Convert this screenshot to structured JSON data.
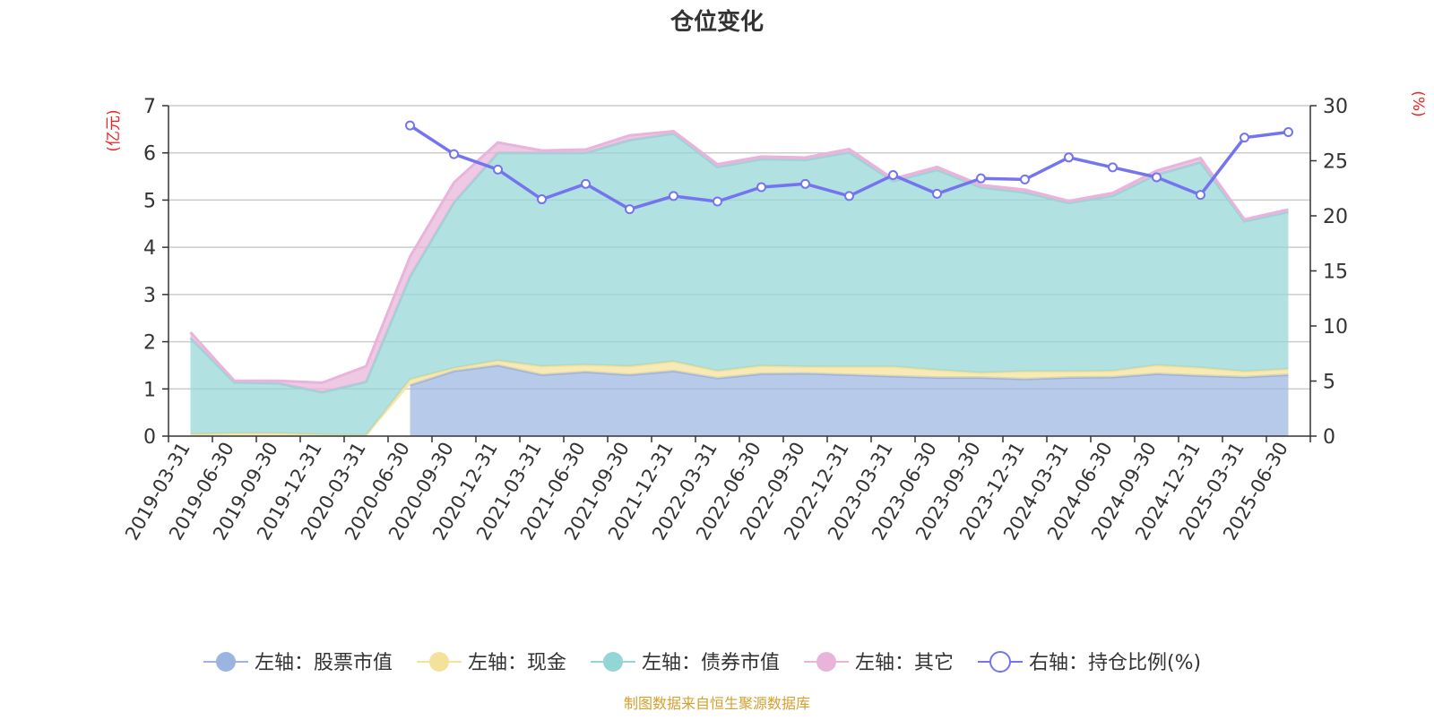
{
  "chart_data": {
    "type": "area",
    "title": "仓位变化",
    "left_axis_unit": "(亿元)",
    "right_axis_unit": "(%)",
    "source_note": "制图数据来自恒生聚源数据库",
    "y_left_range": [
      0,
      7
    ],
    "y_left_ticks": [
      "0",
      "1",
      "2",
      "3",
      "4",
      "5",
      "6",
      "7"
    ],
    "y_right_range": [
      0,
      30
    ],
    "y_right_ticks": [
      "0",
      "5",
      "10",
      "15",
      "20",
      "25",
      "30"
    ],
    "grid": true,
    "legend_position": "bottom",
    "categories": [
      "2019-03-31",
      "2019-06-30",
      "2019-09-30",
      "2019-12-31",
      "2020-03-31",
      "2020-06-30",
      "2020-09-30",
      "2020-12-31",
      "2021-03-31",
      "2021-06-30",
      "2021-09-30",
      "2021-12-31",
      "2022-03-31",
      "2022-06-30",
      "2022-09-30",
      "2022-12-31",
      "2023-03-31",
      "2023-06-30",
      "2023-09-30",
      "2023-12-31",
      "2024-03-31",
      "2024-06-30",
      "2024-09-30",
      "2024-12-31",
      "2025-03-31",
      "2025-06-30"
    ],
    "series": [
      {
        "name": "左轴：股票市值",
        "axis": "left",
        "kind": "stacked-area",
        "color": "#9bb5e0",
        "values": [
          null,
          null,
          null,
          null,
          null,
          1.08,
          1.38,
          1.5,
          1.3,
          1.36,
          1.3,
          1.38,
          1.23,
          1.32,
          1.33,
          1.3,
          1.27,
          1.24,
          1.24,
          1.21,
          1.24,
          1.25,
          1.32,
          1.28,
          1.25,
          1.3
        ]
      },
      {
        "name": "左轴：现金",
        "axis": "left",
        "kind": "stacked-area",
        "color": "#f5e29a",
        "values": [
          0.04,
          0.06,
          0.06,
          0.03,
          0.02,
          0.12,
          0.06,
          0.1,
          0.18,
          0.15,
          0.18,
          0.2,
          0.15,
          0.17,
          0.14,
          0.17,
          0.2,
          0.16,
          0.1,
          0.16,
          0.13,
          0.13,
          0.18,
          0.17,
          0.12,
          0.12
        ]
      },
      {
        "name": "左轴：债券市值",
        "axis": "left",
        "kind": "stacked-area",
        "color": "#94d6d6",
        "values": [
          2.04,
          1.08,
          1.06,
          0.9,
          1.13,
          2.18,
          3.51,
          4.4,
          4.52,
          4.49,
          4.79,
          4.83,
          4.32,
          4.38,
          4.38,
          4.54,
          3.93,
          4.24,
          3.93,
          3.79,
          3.57,
          3.71,
          4.04,
          4.35,
          3.18,
          3.33
        ]
      },
      {
        "name": "左轴：其它",
        "axis": "left",
        "kind": "stacked-area",
        "color": "#e8b4da",
        "values": [
          0.12,
          0.03,
          0.05,
          0.2,
          0.33,
          0.42,
          0.42,
          0.22,
          0.05,
          0.07,
          0.1,
          0.05,
          0.06,
          0.05,
          0.05,
          0.07,
          0.05,
          0.06,
          0.05,
          0.06,
          0.04,
          0.06,
          0.08,
          0.09,
          0.04,
          0.05
        ]
      },
      {
        "name": "右轴：持仓比例(%)",
        "axis": "right",
        "kind": "line",
        "color": "#7474ee",
        "values": [
          null,
          null,
          null,
          null,
          null,
          28.2,
          25.6,
          24.2,
          21.5,
          22.9,
          20.6,
          21.8,
          21.3,
          22.6,
          22.9,
          21.8,
          23.7,
          22.0,
          23.4,
          23.3,
          25.3,
          24.4,
          23.5,
          21.9,
          27.1,
          27.6
        ]
      }
    ]
  }
}
